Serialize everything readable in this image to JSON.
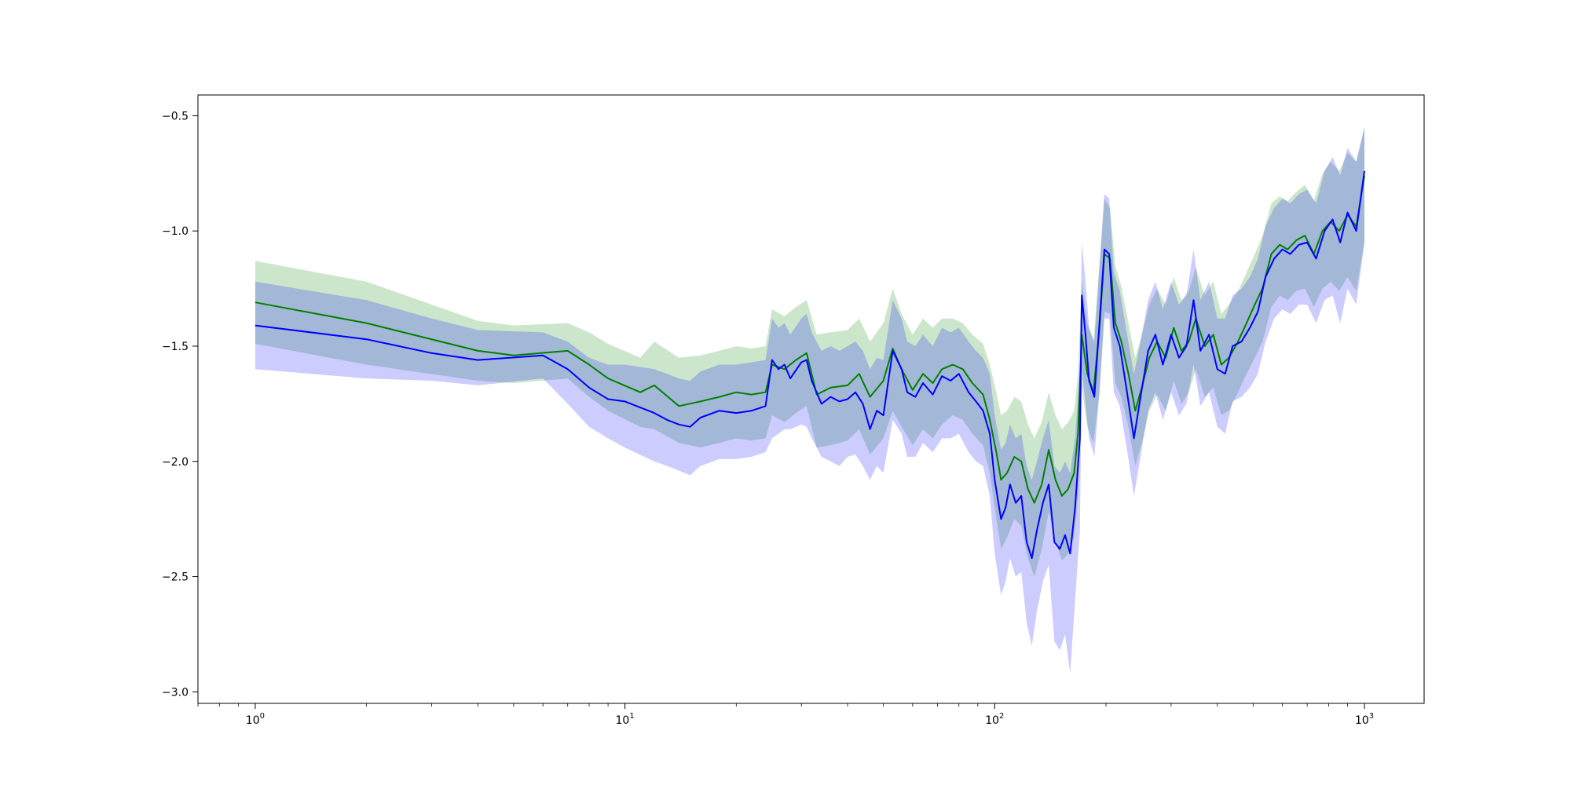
{
  "chart_data": {
    "type": "line",
    "title": "",
    "xlabel": "",
    "ylabel": "",
    "xscale": "log",
    "xlim": [
      0.7,
      1450
    ],
    "ylim": [
      -3.05,
      -0.41
    ],
    "grid": false,
    "legend": "none",
    "x_ticks": [
      {
        "value": 1,
        "base": "10",
        "exp": "0"
      },
      {
        "value": 10,
        "base": "10",
        "exp": "1"
      },
      {
        "value": 100,
        "base": "10",
        "exp": "2"
      },
      {
        "value": 1000,
        "base": "10",
        "exp": "3"
      }
    ],
    "y_ticks": [
      {
        "value": -0.5,
        "label": "−0.5"
      },
      {
        "value": -1.0,
        "label": "−1.0"
      },
      {
        "value": -1.5,
        "label": "−1.5"
      },
      {
        "value": -2.0,
        "label": "−2.0"
      },
      {
        "value": -2.5,
        "label": "−2.5"
      },
      {
        "value": -3.0,
        "label": "−3.0"
      }
    ],
    "series": [
      {
        "color": "#008000",
        "band_color": "#008000",
        "points": [
          [
            1,
            -1.31,
            -1.13,
            -1.49
          ],
          [
            2,
            -1.4,
            -1.22,
            -1.58
          ],
          [
            4,
            -1.52,
            -1.39,
            -1.65
          ],
          [
            5,
            -1.54,
            -1.41,
            -1.66
          ],
          [
            7,
            -1.52,
            -1.4,
            -1.64
          ],
          [
            8,
            -1.58,
            -1.44,
            -1.72
          ],
          [
            9,
            -1.64,
            -1.49,
            -1.78
          ],
          [
            11,
            -1.7,
            -1.55,
            -1.85
          ],
          [
            12,
            -1.67,
            -1.48,
            -1.86
          ],
          [
            14,
            -1.76,
            -1.55,
            -1.92
          ],
          [
            16,
            -1.74,
            -1.54,
            -1.94
          ],
          [
            18,
            -1.72,
            -1.52,
            -1.92
          ],
          [
            20,
            -1.7,
            -1.5,
            -1.9
          ],
          [
            22,
            -1.71,
            -1.51,
            -1.91
          ],
          [
            24,
            -1.7,
            -1.5,
            -1.9
          ],
          [
            25,
            -1.58,
            -1.34,
            -1.8
          ],
          [
            27,
            -1.6,
            -1.37,
            -1.83
          ],
          [
            29,
            -1.56,
            -1.33,
            -1.79
          ],
          [
            31,
            -1.53,
            -1.3,
            -1.76
          ],
          [
            33,
            -1.71,
            -1.45,
            -1.94
          ],
          [
            36,
            -1.68,
            -1.44,
            -1.93
          ],
          [
            40,
            -1.67,
            -1.43,
            -1.91
          ],
          [
            43,
            -1.62,
            -1.38,
            -1.86
          ],
          [
            46,
            -1.72,
            -1.48,
            -1.97
          ],
          [
            50,
            -1.65,
            -1.4,
            -1.9
          ],
          [
            53,
            -1.51,
            -1.25,
            -1.78
          ],
          [
            56,
            -1.6,
            -1.36,
            -1.85
          ],
          [
            60,
            -1.69,
            -1.45,
            -1.93
          ],
          [
            64,
            -1.62,
            -1.38,
            -1.86
          ],
          [
            68,
            -1.66,
            -1.42,
            -1.9
          ],
          [
            72,
            -1.6,
            -1.38,
            -1.84
          ],
          [
            77,
            -1.58,
            -1.38,
            -1.8
          ],
          [
            82,
            -1.6,
            -1.4,
            -1.82
          ],
          [
            87,
            -1.66,
            -1.45,
            -1.88
          ],
          [
            93,
            -1.71,
            -1.49,
            -1.93
          ],
          [
            97,
            -1.82,
            -1.58,
            -2.05
          ],
          [
            101,
            -1.96,
            -1.7,
            -2.25
          ],
          [
            104,
            -2.08,
            -1.8,
            -2.38
          ],
          [
            108,
            -2.05,
            -1.78,
            -2.33
          ],
          [
            113,
            -1.98,
            -1.72,
            -2.25
          ],
          [
            118,
            -2.0,
            -1.74,
            -2.28
          ],
          [
            123,
            -2.12,
            -1.84,
            -2.42
          ],
          [
            128,
            -2.18,
            -1.9,
            -2.5
          ],
          [
            134,
            -2.1,
            -1.83,
            -2.38
          ],
          [
            140,
            -1.95,
            -1.7,
            -2.22
          ],
          [
            146,
            -2.08,
            -1.8,
            -2.35
          ],
          [
            152,
            -2.15,
            -1.86,
            -2.43
          ],
          [
            158,
            -2.12,
            -1.83,
            -2.4
          ],
          [
            164,
            -2.05,
            -1.78,
            -2.33
          ],
          [
            168,
            -1.88,
            -1.62,
            -2.15
          ],
          [
            172,
            -1.45,
            -1.22,
            -1.68
          ],
          [
            178,
            -1.62,
            -1.4,
            -1.85
          ],
          [
            185,
            -1.7,
            -1.48,
            -1.92
          ],
          [
            192,
            -1.42,
            -1.15,
            -1.7
          ],
          [
            198,
            -1.1,
            -0.86,
            -1.35
          ],
          [
            205,
            -1.12,
            -0.9,
            -1.36
          ],
          [
            212,
            -1.4,
            -1.15,
            -1.66
          ],
          [
            220,
            -1.48,
            -1.24,
            -1.72
          ],
          [
            230,
            -1.62,
            -1.4,
            -1.85
          ],
          [
            240,
            -1.78,
            -1.55,
            -2.02
          ],
          [
            250,
            -1.68,
            -1.45,
            -1.92
          ],
          [
            262,
            -1.55,
            -1.32,
            -1.78
          ],
          [
            275,
            -1.48,
            -1.25,
            -1.71
          ],
          [
            290,
            -1.55,
            -1.32,
            -1.78
          ],
          [
            305,
            -1.42,
            -1.2,
            -1.65
          ],
          [
            320,
            -1.52,
            -1.3,
            -1.75
          ],
          [
            335,
            -1.48,
            -1.26,
            -1.7
          ],
          [
            350,
            -1.38,
            -1.16,
            -1.6
          ],
          [
            370,
            -1.5,
            -1.28,
            -1.72
          ],
          [
            390,
            -1.45,
            -1.22,
            -1.68
          ],
          [
            410,
            -1.58,
            -1.36,
            -1.8
          ],
          [
            430,
            -1.55,
            -1.32,
            -1.78
          ],
          [
            455,
            -1.48,
            -1.26,
            -1.7
          ],
          [
            480,
            -1.4,
            -1.18,
            -1.62
          ],
          [
            505,
            -1.32,
            -1.1,
            -1.55
          ],
          [
            530,
            -1.25,
            -1.02,
            -1.48
          ],
          [
            560,
            -1.1,
            -0.88,
            -1.33
          ],
          [
            590,
            -1.06,
            -0.85,
            -1.28
          ],
          [
            620,
            -1.08,
            -0.87,
            -1.3
          ],
          [
            655,
            -1.04,
            -0.83,
            -1.26
          ],
          [
            690,
            -1.02,
            -0.8,
            -1.25
          ],
          [
            730,
            -1.1,
            -0.87,
            -1.33
          ],
          [
            770,
            -1.0,
            -0.75,
            -1.25
          ],
          [
            810,
            -0.96,
            -0.7,
            -1.22
          ],
          [
            855,
            -1.0,
            -0.74,
            -1.26
          ],
          [
            900,
            -0.93,
            -0.66,
            -1.2
          ],
          [
            950,
            -0.98,
            -0.7,
            -1.26
          ],
          [
            1000,
            -0.76,
            -0.55,
            -1.05
          ]
        ]
      },
      {
        "color": "#0000ff",
        "band_color": "#0000ff",
        "points": [
          [
            1,
            -1.41,
            -1.22,
            -1.6
          ],
          [
            2,
            -1.47,
            -1.3,
            -1.64
          ],
          [
            3,
            -1.53,
            -1.38,
            -1.65
          ],
          [
            4,
            -1.56,
            -1.43,
            -1.67
          ],
          [
            6,
            -1.54,
            -1.44,
            -1.64
          ],
          [
            7,
            -1.6,
            -1.48,
            -1.75
          ],
          [
            8,
            -1.68,
            -1.55,
            -1.85
          ],
          [
            9,
            -1.73,
            -1.58,
            -1.9
          ],
          [
            10,
            -1.74,
            -1.58,
            -1.94
          ],
          [
            12,
            -1.79,
            -1.6,
            -2.0
          ],
          [
            13,
            -1.82,
            -1.62,
            -2.02
          ],
          [
            14,
            -1.84,
            -1.64,
            -2.04
          ],
          [
            15,
            -1.85,
            -1.65,
            -2.06
          ],
          [
            16,
            -1.81,
            -1.61,
            -2.02
          ],
          [
            18,
            -1.78,
            -1.58,
            -1.99
          ],
          [
            20,
            -1.79,
            -1.58,
            -1.99
          ],
          [
            22,
            -1.78,
            -1.57,
            -1.98
          ],
          [
            24,
            -1.76,
            -1.56,
            -1.96
          ],
          [
            25,
            -1.56,
            -1.38,
            -1.9
          ],
          [
            26,
            -1.6,
            -1.42,
            -1.88
          ],
          [
            27,
            -1.58,
            -1.4,
            -1.86
          ],
          [
            28,
            -1.64,
            -1.45,
            -1.86
          ],
          [
            30,
            -1.57,
            -1.38,
            -1.84
          ],
          [
            31,
            -1.56,
            -1.36,
            -1.85
          ],
          [
            32,
            -1.65,
            -1.44,
            -1.9
          ],
          [
            34,
            -1.75,
            -1.52,
            -1.98
          ],
          [
            36,
            -1.72,
            -1.5,
            -2.0
          ],
          [
            38,
            -1.74,
            -1.52,
            -2.02
          ],
          [
            40,
            -1.73,
            -1.5,
            -1.98
          ],
          [
            42,
            -1.7,
            -1.48,
            -1.97
          ],
          [
            44,
            -1.75,
            -1.52,
            -2.02
          ],
          [
            46,
            -1.86,
            -1.6,
            -2.08
          ],
          [
            48,
            -1.78,
            -1.55,
            -2.02
          ],
          [
            50,
            -1.8,
            -1.56,
            -2.05
          ],
          [
            53,
            -1.52,
            -1.3,
            -1.82
          ],
          [
            56,
            -1.6,
            -1.38,
            -1.88
          ],
          [
            58,
            -1.7,
            -1.48,
            -1.98
          ],
          [
            61,
            -1.72,
            -1.5,
            -1.98
          ],
          [
            64,
            -1.66,
            -1.45,
            -1.92
          ],
          [
            68,
            -1.71,
            -1.5,
            -1.96
          ],
          [
            72,
            -1.63,
            -1.42,
            -1.9
          ],
          [
            76,
            -1.65,
            -1.44,
            -1.9
          ],
          [
            80,
            -1.62,
            -1.42,
            -1.88
          ],
          [
            85,
            -1.7,
            -1.48,
            -1.96
          ],
          [
            89,
            -1.74,
            -1.52,
            -2.0
          ],
          [
            93,
            -1.78,
            -1.55,
            -2.02
          ],
          [
            97,
            -1.88,
            -1.62,
            -2.15
          ],
          [
            100,
            -2.08,
            -1.8,
            -2.4
          ],
          [
            104,
            -2.25,
            -1.95,
            -2.58
          ],
          [
            107,
            -2.2,
            -1.92,
            -2.52
          ],
          [
            110,
            -2.1,
            -1.84,
            -2.42
          ],
          [
            114,
            -2.18,
            -1.9,
            -2.5
          ],
          [
            118,
            -2.15,
            -1.88,
            -2.48
          ],
          [
            122,
            -2.35,
            -2.02,
            -2.7
          ],
          [
            126,
            -2.42,
            -2.08,
            -2.8
          ],
          [
            130,
            -2.3,
            -2.0,
            -2.65
          ],
          [
            135,
            -2.18,
            -1.9,
            -2.52
          ],
          [
            140,
            -2.1,
            -1.82,
            -2.45
          ],
          [
            145,
            -2.35,
            -2.02,
            -2.78
          ],
          [
            150,
            -2.38,
            -2.05,
            -2.82
          ],
          [
            155,
            -2.32,
            -2.0,
            -2.75
          ],
          [
            160,
            -2.4,
            -2.05,
            -2.92
          ],
          [
            165,
            -2.2,
            -1.9,
            -2.6
          ],
          [
            170,
            -1.9,
            -1.62,
            -2.3
          ],
          [
            172,
            -1.28,
            -1.05,
            -1.6
          ],
          [
            176,
            -1.45,
            -1.22,
            -1.75
          ],
          [
            180,
            -1.65,
            -1.42,
            -1.9
          ],
          [
            186,
            -1.72,
            -1.48,
            -1.98
          ],
          [
            192,
            -1.4,
            -1.15,
            -1.7
          ],
          [
            198,
            -1.08,
            -0.84,
            -1.38
          ],
          [
            204,
            -1.1,
            -0.86,
            -1.38
          ],
          [
            210,
            -1.42,
            -1.18,
            -1.7
          ],
          [
            218,
            -1.5,
            -1.26,
            -1.76
          ],
          [
            228,
            -1.7,
            -1.45,
            -1.95
          ],
          [
            238,
            -1.9,
            -1.62,
            -2.15
          ],
          [
            248,
            -1.72,
            -1.48,
            -1.98
          ],
          [
            260,
            -1.52,
            -1.3,
            -1.78
          ],
          [
            272,
            -1.45,
            -1.22,
            -1.7
          ],
          [
            285,
            -1.58,
            -1.34,
            -1.82
          ],
          [
            300,
            -1.45,
            -1.22,
            -1.7
          ],
          [
            315,
            -1.55,
            -1.32,
            -1.8
          ],
          [
            330,
            -1.5,
            -1.28,
            -1.75
          ],
          [
            345,
            -1.3,
            -1.08,
            -1.58
          ],
          [
            360,
            -1.52,
            -1.3,
            -1.76
          ],
          [
            380,
            -1.45,
            -1.22,
            -1.7
          ],
          [
            400,
            -1.6,
            -1.38,
            -1.85
          ],
          [
            420,
            -1.62,
            -1.38,
            -1.88
          ],
          [
            440,
            -1.5,
            -1.28,
            -1.74
          ],
          [
            465,
            -1.48,
            -1.25,
            -1.72
          ],
          [
            490,
            -1.42,
            -1.2,
            -1.68
          ],
          [
            515,
            -1.35,
            -1.12,
            -1.62
          ],
          [
            540,
            -1.2,
            -0.98,
            -1.48
          ],
          [
            570,
            -1.12,
            -0.9,
            -1.38
          ],
          [
            600,
            -1.08,
            -0.86,
            -1.34
          ],
          [
            630,
            -1.1,
            -0.88,
            -1.36
          ],
          [
            665,
            -1.06,
            -0.84,
            -1.32
          ],
          [
            700,
            -1.05,
            -0.82,
            -1.32
          ],
          [
            740,
            -1.12,
            -0.88,
            -1.4
          ],
          [
            780,
            -1.0,
            -0.74,
            -1.3
          ],
          [
            820,
            -0.95,
            -0.68,
            -1.28
          ],
          [
            860,
            -1.05,
            -0.76,
            -1.4
          ],
          [
            900,
            -0.92,
            -0.64,
            -1.25
          ],
          [
            950,
            -1.0,
            -0.7,
            -1.32
          ],
          [
            1000,
            -0.74,
            -0.55,
            -1.05
          ]
        ]
      }
    ]
  }
}
